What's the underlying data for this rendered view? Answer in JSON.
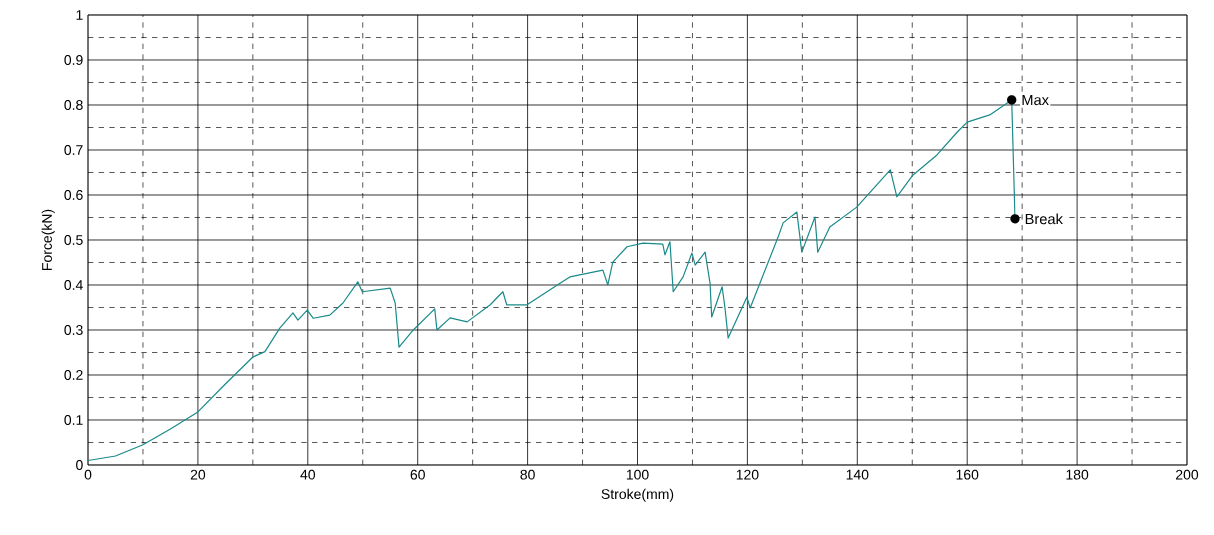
{
  "chart_data": {
    "type": "line",
    "xlabel": "Stroke(mm)",
    "ylabel": "Force(kN)",
    "xlim": [
      0,
      200
    ],
    "xticks": [
      0,
      20,
      40,
      60,
      80,
      100,
      120,
      140,
      160,
      180,
      200
    ],
    "ylim": [
      0,
      1
    ],
    "yticks": [
      0,
      0.1,
      0.2,
      0.3,
      0.4,
      0.5,
      0.6,
      0.7,
      0.8,
      0.9,
      1
    ],
    "grid": true,
    "marker": "none",
    "line_style": "solid",
    "series": [
      {
        "color": "#1a8a8a",
        "x": [
          0,
          5,
          10,
          15,
          20,
          25,
          30,
          32.2,
          34.9,
          37.3,
          38.2,
          39.9,
          41,
          44,
          46.4,
          49.1,
          49.9,
          55,
          55.9,
          56.6,
          59.2,
          63.1,
          63.5,
          65.9,
          69,
          73.2,
          75.5,
          76.2,
          79.9,
          85.9,
          87.7,
          93.7,
          94.6,
          95.5,
          98.1,
          101,
          104.6,
          105,
          105.9,
          106.5,
          108.3,
          109.9,
          110.5,
          112.3,
          113.2,
          113.5,
          115.4,
          115.9,
          116.5,
          119.9,
          120.5,
          125.6,
          126.5,
          129,
          129.9,
          132.3,
          132.8,
          135,
          139.9,
          146,
          147.2,
          150.1,
          154.5,
          158.2,
          160,
          164.1,
          168.1,
          168.7
        ],
        "values": [
          0.01,
          0.02,
          0.045,
          0.08,
          0.118,
          0.18,
          0.24,
          0.252,
          0.304,
          0.338,
          0.322,
          0.344,
          0.326,
          0.333,
          0.36,
          0.407,
          0.385,
          0.393,
          0.36,
          0.262,
          0.3,
          0.347,
          0.3,
          0.327,
          0.318,
          0.356,
          0.385,
          0.356,
          0.356,
          0.404,
          0.418,
          0.433,
          0.4,
          0.451,
          0.485,
          0.493,
          0.491,
          0.467,
          0.496,
          0.385,
          0.418,
          0.471,
          0.444,
          0.473,
          0.404,
          0.329,
          0.396,
          0.351,
          0.282,
          0.373,
          0.349,
          0.507,
          0.538,
          0.562,
          0.473,
          0.551,
          0.473,
          0.529,
          0.573,
          0.656,
          0.596,
          0.644,
          0.689,
          0.74,
          0.762,
          0.778,
          0.811,
          0.547
        ]
      }
    ],
    "annotations": [
      {
        "text": "Max",
        "x": 168.1,
        "y": 0.811
      },
      {
        "text": "Break",
        "x": 168.7,
        "y": 0.547
      }
    ]
  }
}
